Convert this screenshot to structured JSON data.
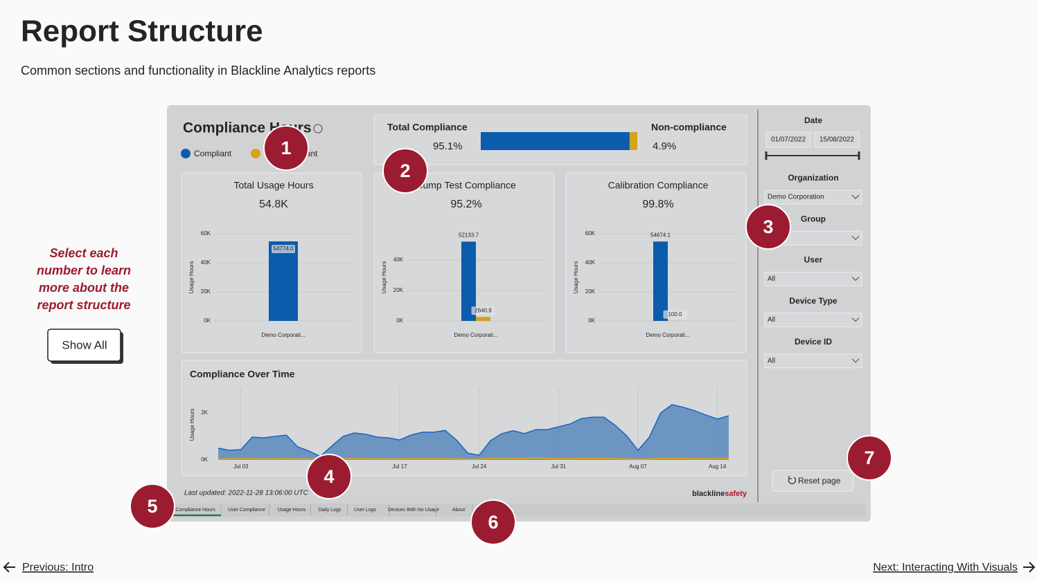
{
  "header": {
    "title": "Report Structure",
    "subtitle": "Common sections and functionality in Blackline Analytics reports"
  },
  "intro": {
    "text": "Select each number to learn more about the report structure",
    "button": "Show All"
  },
  "report": {
    "title": "Compliance Hours",
    "legend": [
      {
        "name": "Compliant",
        "color": "#0b5cad"
      },
      {
        "name": "Non-compliant",
        "color": "#d4a31c"
      }
    ],
    "total": {
      "compliant_label": "Total Compliance",
      "compliant": 95.1,
      "compliant_text": "95.1%",
      "noncompliant_label": "Non-compliance",
      "noncompliant": 4.9,
      "noncompliant_text": "4.9%"
    },
    "cards": [
      {
        "type": "bar",
        "title": "Total Usage Hours",
        "kpi": "54.8K",
        "y_label": "Usage Hours",
        "categories": [
          "Demo Corporati..."
        ],
        "series": [
          {
            "color": "#0b5cad",
            "values": [
              54774.0
            ],
            "value_labels": [
              "54774.0"
            ]
          }
        ],
        "ylim": [
          0,
          60000
        ],
        "yticks": [
          {
            "value": 0,
            "label": "0K"
          },
          {
            "value": 20000,
            "label": "20K"
          },
          {
            "value": 40000,
            "label": "40K"
          },
          {
            "value": 60000,
            "label": "60K"
          }
        ],
        "grid": true
      },
      {
        "type": "bar",
        "title": "Bump Test Compliance",
        "kpi": "95.2%",
        "y_label": "Usage Hours",
        "categories": [
          "Demo Corporati..."
        ],
        "series": [
          {
            "color": "#0b5cad",
            "values": [
              52133.7
            ],
            "value_labels": [
              "52133.7"
            ]
          },
          {
            "color": "#d4a31c",
            "values": [
              2640.9
            ],
            "value_labels": [
              "2640.9"
            ]
          }
        ],
        "ylim": [
          0,
          57300
        ],
        "yticks": [
          {
            "value": 0,
            "label": "0K"
          },
          {
            "value": 20000,
            "label": "20K"
          },
          {
            "value": 40000,
            "label": "40K"
          }
        ],
        "grid": true
      },
      {
        "type": "bar",
        "title": "Calibration Compliance",
        "kpi": "99.8%",
        "y_label": "Usage Hours",
        "categories": [
          "Demo Corporati..."
        ],
        "series": [
          {
            "color": "#0b5cad",
            "values": [
              54674.1
            ],
            "value_labels": [
              "54674.1"
            ]
          },
          {
            "color": "#d4a31c",
            "values": [
              100.0
            ],
            "value_labels": [
              "100.0"
            ]
          }
        ],
        "ylim": [
          0,
          60000
        ],
        "yticks": [
          {
            "value": 0,
            "label": "0K"
          },
          {
            "value": 20000,
            "label": "20K"
          },
          {
            "value": 40000,
            "label": "40K"
          },
          {
            "value": 60000,
            "label": "60K"
          }
        ],
        "grid": true
      }
    ],
    "line_chart": {
      "type": "area",
      "title": "Compliance Over Time",
      "y_label": "Usage Hours",
      "x": [
        "Jul 01",
        "Jul 02",
        "Jul 03",
        "Jul 04",
        "Jul 05",
        "Jul 06",
        "Jul 07",
        "Jul 08",
        "Jul 09",
        "Jul 10",
        "Jul 11",
        "Jul 12",
        "Jul 13",
        "Jul 14",
        "Jul 15",
        "Jul 16",
        "Jul 17",
        "Jul 18",
        "Jul 19",
        "Jul 20",
        "Jul 21",
        "Jul 22",
        "Jul 23",
        "Jul 24",
        "Jul 25",
        "Jul 26",
        "Jul 27",
        "Jul 28",
        "Jul 29",
        "Jul 30",
        "Jul 31",
        "Aug 01",
        "Aug 02",
        "Aug 03",
        "Aug 04",
        "Aug 05",
        "Aug 06",
        "Aug 07",
        "Aug 08",
        "Aug 09",
        "Aug 10",
        "Aug 11",
        "Aug 12",
        "Aug 13",
        "Aug 14",
        "Aug 15"
      ],
      "series": [
        {
          "color": "#1565c0",
          "values": [
            500,
            410,
            440,
            970,
            940,
            1000,
            1060,
            560,
            380,
            150,
            590,
            1000,
            1150,
            1090,
            970,
            940,
            850,
            1060,
            1180,
            1180,
            1260,
            850,
            290,
            200,
            820,
            1120,
            1240,
            1120,
            1290,
            1290,
            1410,
            1530,
            1760,
            1820,
            1820,
            1470,
            1030,
            410,
            970,
            2000,
            2350,
            2240,
            2090,
            1910,
            1740,
            1880
          ]
        },
        {
          "color": "#d4a31c",
          "values": [
            40,
            40,
            50,
            50,
            40,
            40,
            50,
            40,
            40,
            30,
            40,
            50,
            50,
            50,
            40,
            40,
            40,
            50,
            50,
            50,
            50,
            40,
            30,
            40,
            60,
            80,
            70,
            60,
            90,
            60,
            50,
            50,
            60,
            60,
            60,
            50,
            40,
            30,
            40,
            60,
            60,
            60,
            50,
            50,
            50,
            50
          ]
        }
      ],
      "ylim": [
        0,
        3000
      ],
      "yticks": [
        {
          "value": 0,
          "label": "0K"
        },
        {
          "value": 2000,
          "label": "2K"
        }
      ],
      "xticks": [
        "Jul 03",
        "Jul 17",
        "Jul 24",
        "Jul 31",
        "Aug 07",
        "Aug 14"
      ],
      "grid": true
    },
    "last_updated": "Last updated: 2022-11-28 13:06:00 UTC",
    "brand": {
      "part1": "blackline",
      "part2": "safety"
    },
    "tabs": [
      "Compliance Hours",
      "User Compliance",
      "Usage Hours",
      "Daily Logs",
      "User Logs",
      "Devices With No Usage",
      "About"
    ],
    "active_tab": 0,
    "filters": {
      "date": {
        "label": "Date",
        "start": "01/07/2022",
        "end": "15/08/2022"
      },
      "dropdowns": [
        {
          "label": "Organization",
          "value": "Demo Corporation"
        },
        {
          "label": "Group"
        },
        {
          "label": "User",
          "value": "All"
        },
        {
          "label": "Device Type",
          "value": "All"
        },
        {
          "label": "Device ID",
          "value": "All"
        }
      ]
    },
    "reset": "Reset page"
  },
  "markers": [
    "1",
    "2",
    "3",
    "4",
    "5",
    "6",
    "7"
  ],
  "nav": {
    "previous": "Previous: Intro",
    "next": "Next: Interacting With Visuals"
  }
}
